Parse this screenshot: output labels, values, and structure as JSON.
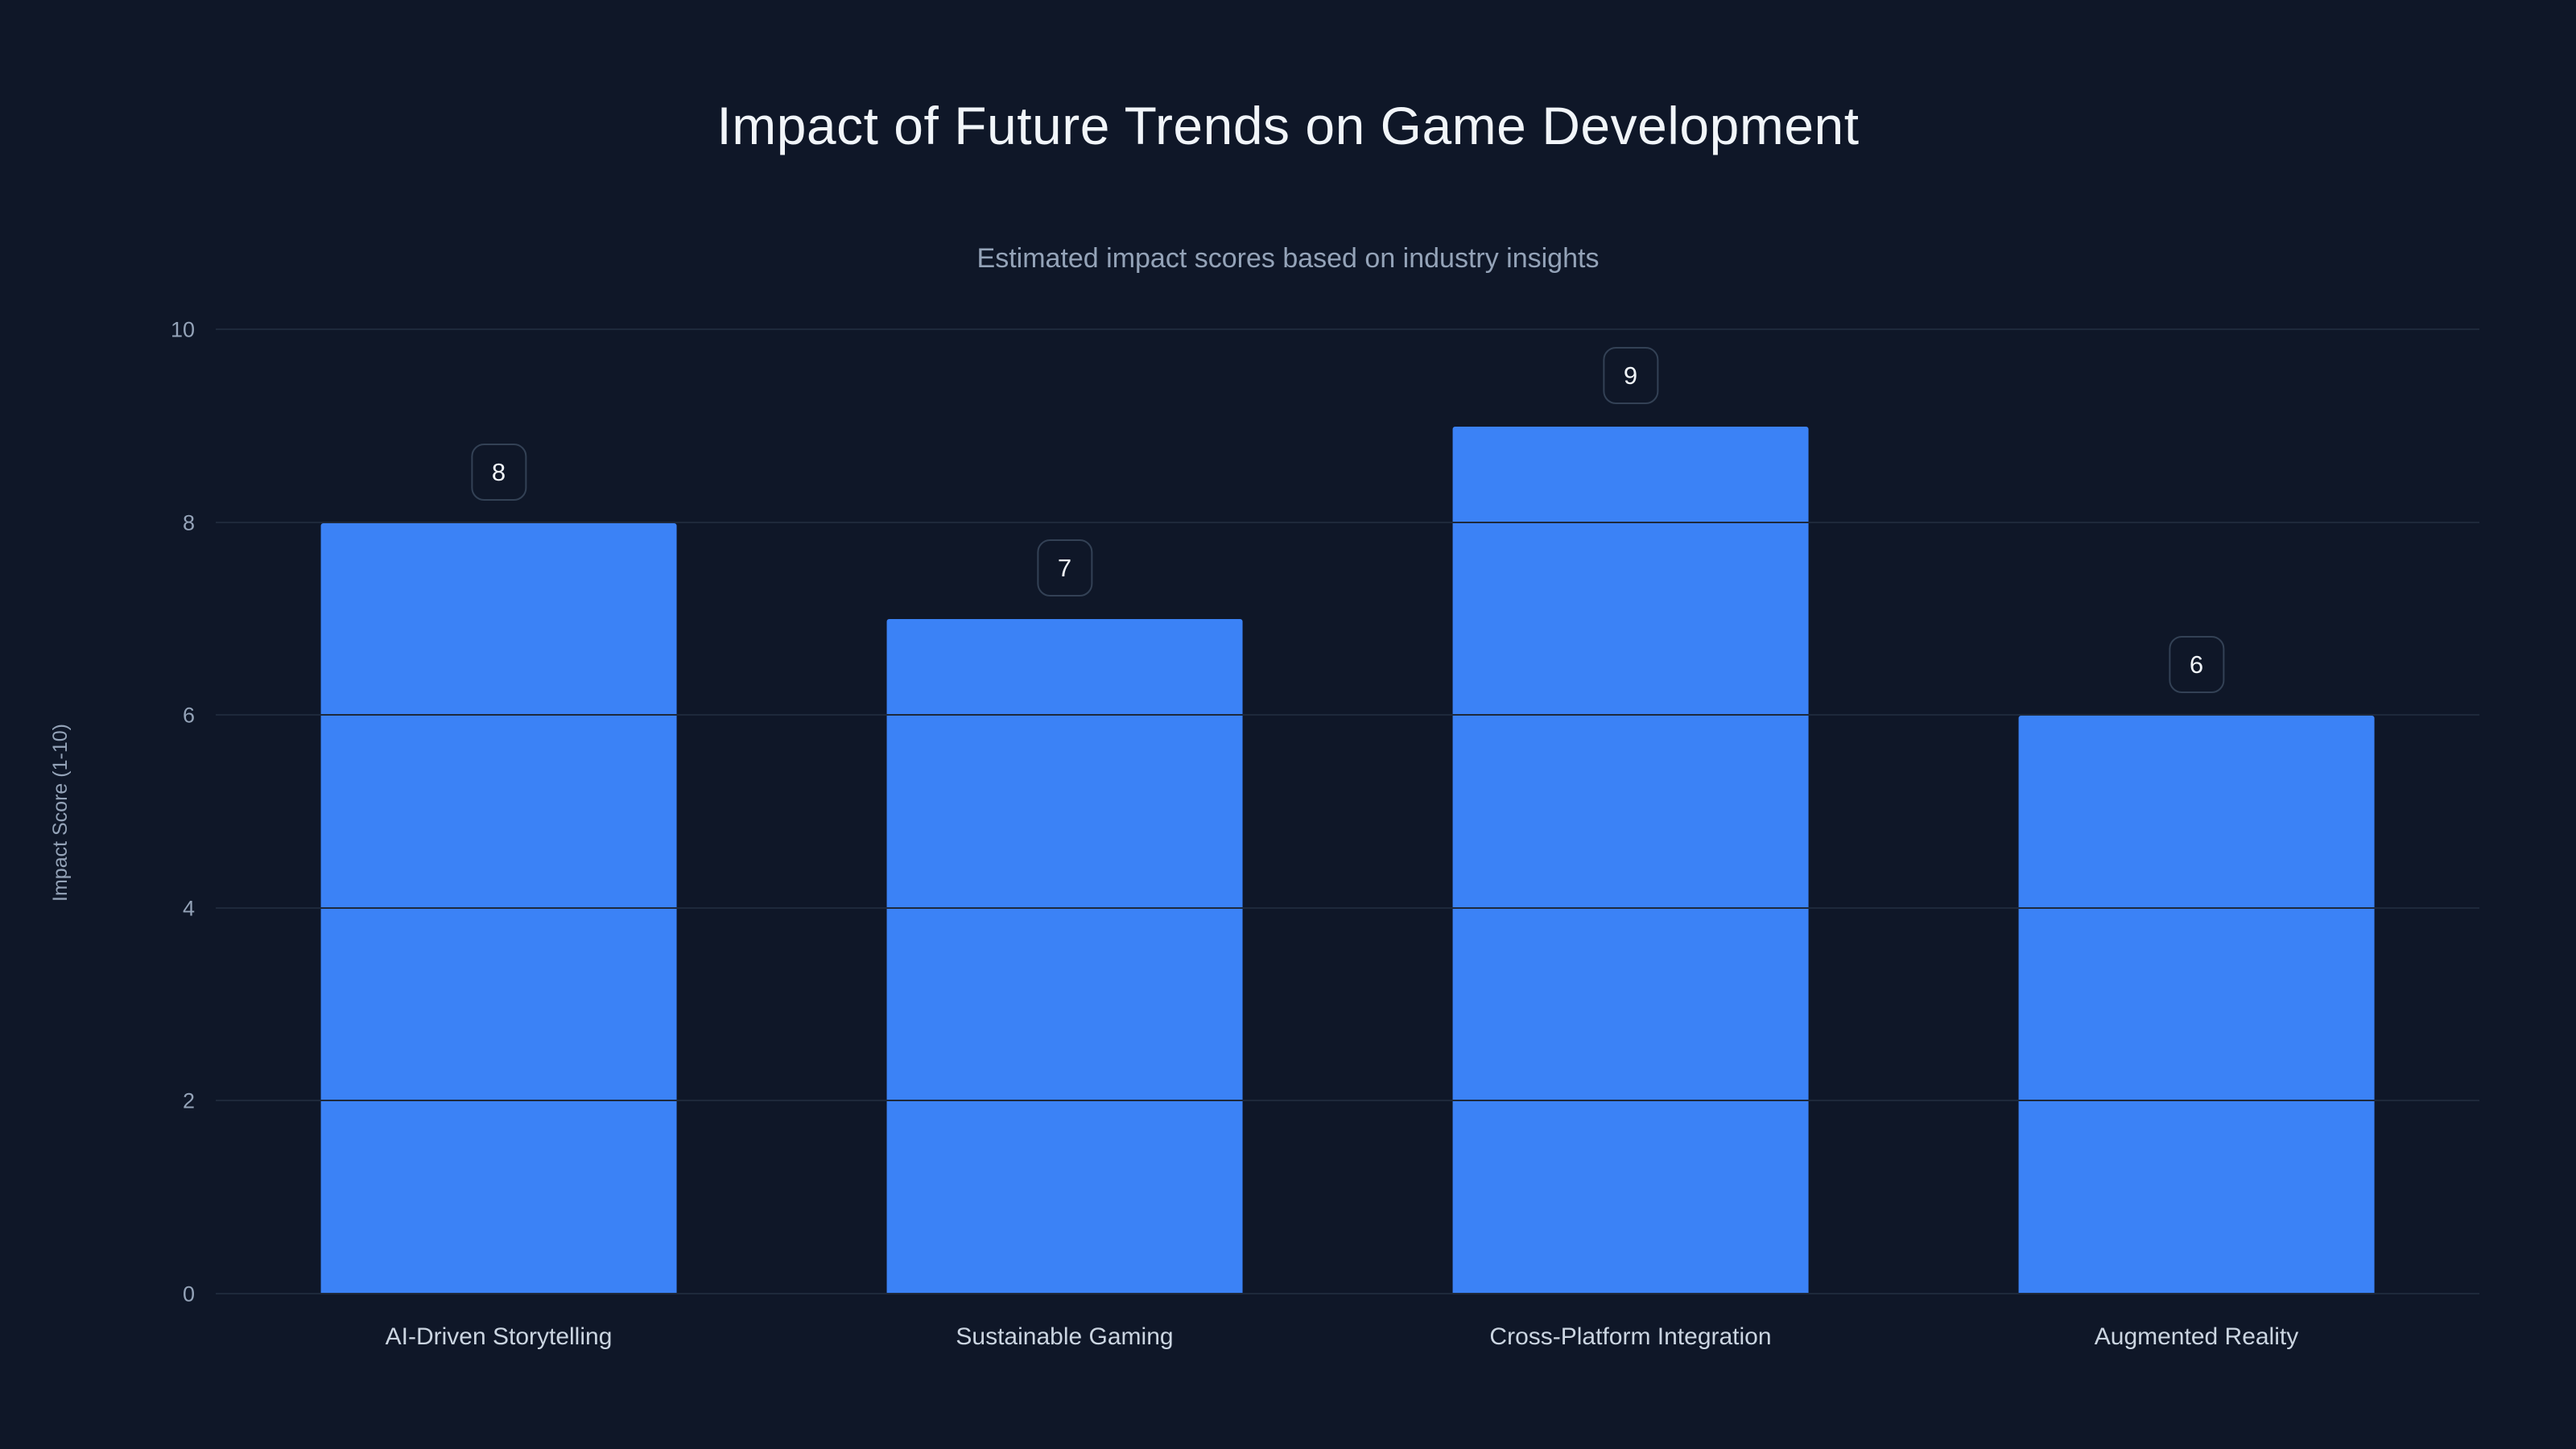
{
  "chart_data": {
    "type": "bar",
    "title": "Impact of Future Trends on Game Development",
    "subtitle": "Estimated impact scores based on industry insights",
    "categories": [
      "AI-Driven Storytelling",
      "Sustainable Gaming",
      "Cross-Platform Integration",
      "Augmented Reality"
    ],
    "values": [
      8,
      7,
      9,
      6
    ],
    "value_labels": [
      "8",
      "7",
      "9",
      "6"
    ],
    "xlabel": "",
    "ylabel": "Impact Score (1-10)",
    "ylim": [
      0,
      10
    ],
    "yticks": [
      0,
      2,
      4,
      6,
      8,
      10
    ],
    "grid": true,
    "legend": false,
    "colors": {
      "background": "#0f1728",
      "bar": "#3b82f6",
      "gridline": "#1e293b",
      "title_text": "#f1f5f9",
      "subtitle_text": "#94a3b8",
      "tick_text": "#94a3b8",
      "category_text": "#cbd5e1",
      "badge_border": "#334155",
      "badge_text": "#f1f5f9"
    }
  }
}
